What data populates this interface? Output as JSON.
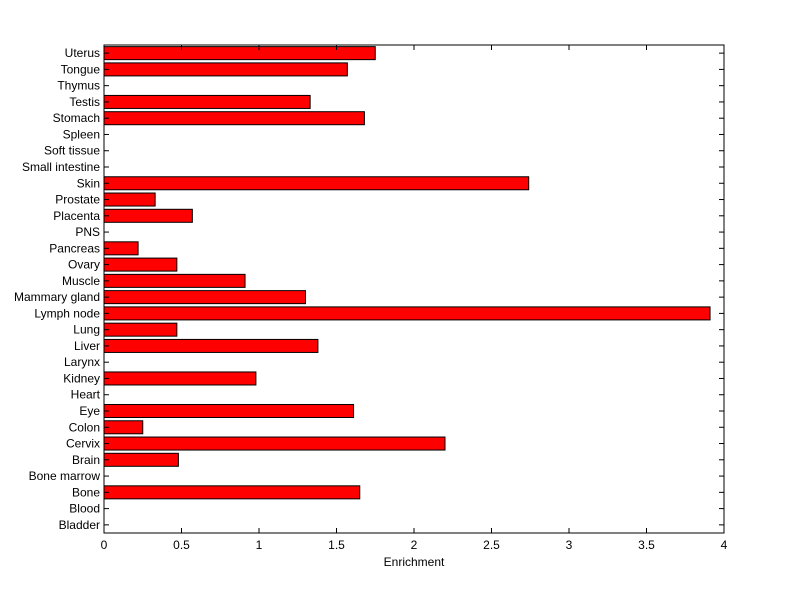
{
  "chart_data": {
    "type": "bar",
    "orientation": "horizontal",
    "title": "",
    "xlabel": "Enrichment",
    "ylabel": "",
    "xlim": [
      0,
      4
    ],
    "x_ticks": [
      "0",
      "0.5",
      "1",
      "1.5",
      "2",
      "2.5",
      "3",
      "3.5",
      "4"
    ],
    "bar_color": "#ff0000",
    "bar_edge_color": "#000000",
    "grid": false,
    "categories": [
      "Bladder",
      "Blood",
      "Bone",
      "Bone marrow",
      "Brain",
      "Cervix",
      "Colon",
      "Eye",
      "Heart",
      "Kidney",
      "Larynx",
      "Liver",
      "Lung",
      "Lymph node",
      "Mammary gland",
      "Muscle",
      "Ovary",
      "Pancreas",
      "PNS",
      "Placenta",
      "Prostate",
      "Skin",
      "Small intestine",
      "Soft tissue",
      "Spleen",
      "Stomach",
      "Testis",
      "Thymus",
      "Tongue",
      "Uterus"
    ],
    "values": [
      0,
      0,
      1.65,
      0,
      0.48,
      2.2,
      0.25,
      1.61,
      0,
      0.98,
      0,
      1.38,
      0.47,
      3.91,
      1.3,
      0.91,
      0.47,
      0.22,
      0,
      0.57,
      0.33,
      2.74,
      0,
      0,
      0,
      1.68,
      1.33,
      0,
      1.57,
      1.75
    ]
  }
}
